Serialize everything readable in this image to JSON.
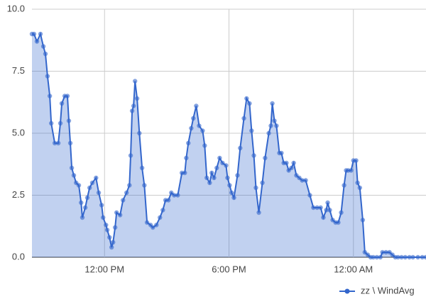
{
  "chart_data": {
    "type": "area",
    "x": [
      8.5,
      8.6,
      8.74,
      8.91,
      9.05,
      9.15,
      9.25,
      9.36,
      9.43,
      9.6,
      9.77,
      9.87,
      9.94,
      10.08,
      10.21,
      10.28,
      10.35,
      10.42,
      10.52,
      10.63,
      10.76,
      10.87,
      10.93,
      11.07,
      11.17,
      11.28,
      11.41,
      11.59,
      11.72,
      11.86,
      11.93,
      12.07,
      12.13,
      12.24,
      12.34,
      12.41,
      12.51,
      12.58,
      12.75,
      12.89,
      13.06,
      13.2,
      13.26,
      13.33,
      13.4,
      13.47,
      13.57,
      13.68,
      13.81,
      13.92,
      14.05,
      14.22,
      14.33,
      14.5,
      14.67,
      14.81,
      14.94,
      15.08,
      15.22,
      15.36,
      15.53,
      15.73,
      15.87,
      15.94,
      16.04,
      16.18,
      16.28,
      16.42,
      16.56,
      16.73,
      16.83,
      16.93,
      17.07,
      17.17,
      17.28,
      17.41,
      17.55,
      17.69,
      17.86,
      17.93,
      18.03,
      18.13,
      18.24,
      18.41,
      18.54,
      18.72,
      18.85,
      18.99,
      19.09,
      19.2,
      19.3,
      19.44,
      19.61,
      19.74,
      19.92,
      20.02,
      20.09,
      20.19,
      20.29,
      20.43,
      20.53,
      20.64,
      20.77,
      20.88,
      21.01,
      21.12,
      21.25,
      21.39,
      21.53,
      21.7,
      21.9,
      22.07,
      22.25,
      22.42,
      22.55,
      22.69,
      22.76,
      22.86,
      23.0,
      23.14,
      23.27,
      23.41,
      23.55,
      23.65,
      23.75,
      23.89,
      24.0,
      24.13,
      24.2,
      24.31,
      24.45,
      24.55,
      24.69,
      24.83,
      24.96,
      25.13,
      25.3,
      25.4,
      25.57,
      25.74,
      25.88,
      26.02,
      26.15,
      26.32,
      26.5,
      26.7,
      26.87,
      27.11,
      27.32,
      27.49
    ],
    "series": [
      {
        "name": "zz \\ WindAvg",
        "color": "#3366cc",
        "values": [
          9.0,
          9.0,
          8.7,
          9.0,
          8.5,
          8.2,
          7.3,
          6.5,
          5.4,
          4.6,
          4.6,
          5.4,
          6.2,
          6.5,
          6.5,
          5.5,
          4.6,
          3.6,
          3.3,
          3.0,
          2.9,
          2.2,
          1.6,
          2.0,
          2.4,
          2.8,
          3.0,
          3.2,
          2.6,
          2.1,
          1.6,
          1.3,
          1.1,
          0.8,
          0.4,
          0.6,
          1.2,
          1.8,
          1.7,
          2.3,
          2.6,
          2.9,
          4.1,
          5.9,
          6.1,
          7.1,
          6.4,
          5.0,
          3.6,
          2.9,
          1.4,
          1.3,
          1.2,
          1.3,
          1.6,
          1.9,
          2.3,
          2.3,
          2.6,
          2.5,
          2.5,
          3.4,
          3.4,
          4.0,
          4.6,
          5.2,
          5.6,
          6.1,
          5.3,
          5.1,
          4.5,
          3.2,
          3.0,
          3.4,
          3.2,
          3.6,
          4.0,
          3.8,
          3.7,
          3.2,
          2.9,
          2.6,
          2.4,
          3.3,
          4.4,
          5.6,
          6.4,
          6.2,
          5.1,
          4.1,
          2.8,
          1.8,
          3.0,
          4.0,
          5.0,
          5.3,
          6.2,
          5.5,
          5.3,
          4.2,
          4.2,
          3.8,
          3.8,
          3.5,
          3.6,
          3.8,
          3.3,
          3.2,
          3.1,
          3.1,
          2.5,
          2.0,
          2.0,
          2.0,
          1.6,
          1.9,
          2.2,
          1.9,
          1.5,
          1.4,
          1.4,
          1.8,
          2.9,
          3.5,
          3.5,
          3.5,
          3.9,
          3.9,
          3.0,
          2.8,
          1.5,
          0.2,
          0.1,
          0,
          0,
          0,
          0,
          0.2,
          0.2,
          0.2,
          0.1,
          0,
          0,
          0,
          0,
          0,
          0,
          0,
          0,
          0
        ]
      }
    ],
    "xlim": [
      8.5,
      27.5
    ],
    "xticks": [
      {
        "value": 12,
        "label": "12:00 PM"
      },
      {
        "value": 18,
        "label": "6:00 PM"
      },
      {
        "value": 24,
        "label": "12:00 AM"
      }
    ],
    "ylim": [
      0,
      10
    ],
    "yticks": [
      {
        "value": 0,
        "label": "0.0"
      },
      {
        "value": 2.5,
        "label": "2.5"
      },
      {
        "value": 5,
        "label": "5.0"
      },
      {
        "value": 7.5,
        "label": "7.5"
      },
      {
        "value": 10,
        "label": "10.0"
      }
    ],
    "grid": true,
    "legend": "bottom-right"
  }
}
